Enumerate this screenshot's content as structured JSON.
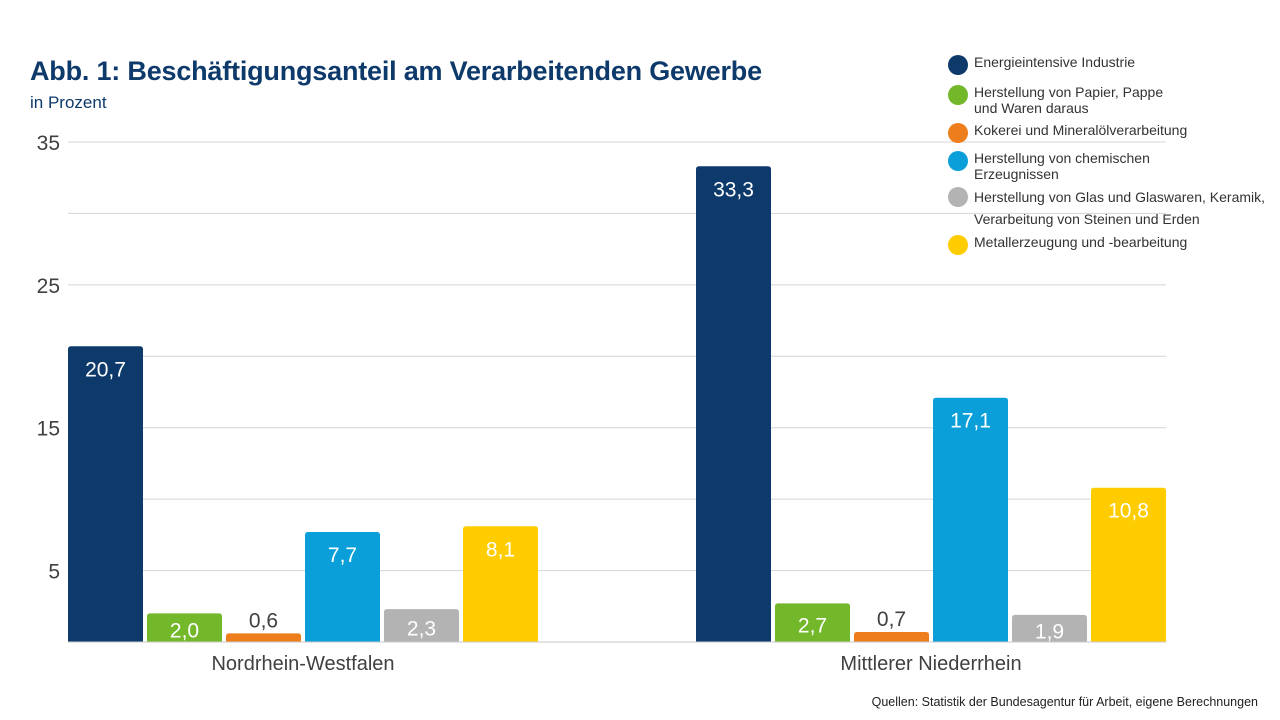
{
  "chart_data": {
    "type": "bar",
    "title": "Abb. 1: Beschäftigungsanteil am Verarbeitenden Gewerbe",
    "subtitle": "in Prozent",
    "categories": [
      "Nordrhein-Westfalen",
      "Mittlerer Niederrhein"
    ],
    "series": [
      {
        "name": "Energieintensive Industrie",
        "color": "#0d3a6b",
        "values": [
          20.7,
          33.3
        ],
        "labels": [
          "20,7",
          "33,3"
        ]
      },
      {
        "name": "Herstellung von Papier, Pappe\nund Waren daraus",
        "color": "#73b82a",
        "values": [
          2.0,
          2.7
        ],
        "labels": [
          "2,0",
          "2,7"
        ]
      },
      {
        "name": "Kokerei und Mineralölverarbeitung",
        "color": "#ee7d1b",
        "values": [
          0.6,
          0.7
        ],
        "labels": [
          "0,6",
          "0,7"
        ]
      },
      {
        "name": "Herstellung von chemischen\nErzeugnissen",
        "color": "#0a9fd8",
        "values": [
          7.7,
          17.1
        ],
        "labels": [
          "7,7",
          "17,1"
        ]
      },
      {
        "name": "Herstellung von Glas und Glaswaren, Keramik,\nVerarbeitung von Steinen und Erden",
        "color": "#b3b3b3",
        "values": [
          2.3,
          1.9
        ],
        "labels": [
          "2,3",
          "1,9"
        ]
      },
      {
        "name": "Metallerzeugung und -bearbeitung",
        "color": "#ffcc00",
        "values": [
          8.1,
          10.8
        ],
        "labels": [
          "8,1",
          "10,8"
        ]
      }
    ],
    "ylim": [
      0,
      35
    ],
    "yticks": [
      5,
      15,
      25,
      35
    ],
    "ygrid": [
      5,
      10,
      15,
      20,
      25,
      30,
      35
    ],
    "grid": true,
    "legend": "top-right",
    "source": "Quellen: Statistik der Bundesagentur für Arbeit, eigene Berechnungen"
  }
}
